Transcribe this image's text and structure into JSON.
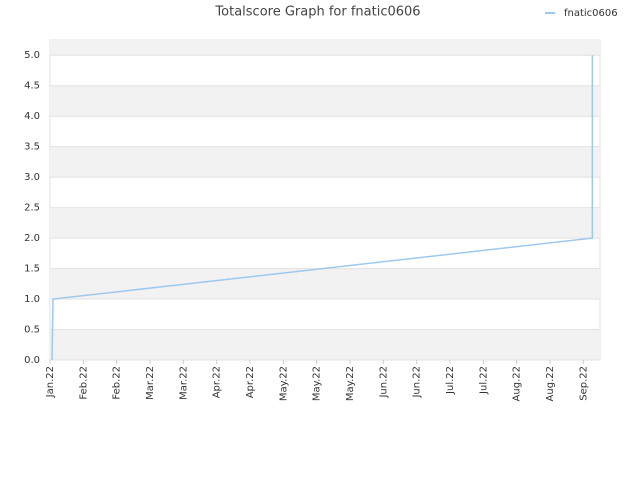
{
  "chart_data": {
    "type": "line",
    "title": "Totalscore Graph for fnatic0606",
    "x": [
      0.06,
      0.09,
      16.27,
      16.27
    ],
    "series": [
      {
        "name": "fnatic0606",
        "color": "#9ec9ef",
        "values": [
          0,
          1,
          2,
          5
        ]
      }
    ],
    "xlim": [
      0,
      16.5
    ],
    "xticks": [
      {
        "value": 0,
        "label": "Jan.22"
      },
      {
        "value": 1,
        "label": "Feb.22"
      },
      {
        "value": 2,
        "label": "Feb.22"
      },
      {
        "value": 3,
        "label": "Mar.22"
      },
      {
        "value": 4,
        "label": "Mar.22"
      },
      {
        "value": 5,
        "label": "Apr.22"
      },
      {
        "value": 6,
        "label": "Apr.22"
      },
      {
        "value": 7,
        "label": "May.22"
      },
      {
        "value": 8,
        "label": "May.22"
      },
      {
        "value": 9,
        "label": "May.22"
      },
      {
        "value": 10,
        "label": "Jun.22"
      },
      {
        "value": 11,
        "label": "Jun.22"
      },
      {
        "value": 12,
        "label": "Jul.22"
      },
      {
        "value": 13,
        "label": "Jul.22"
      },
      {
        "value": 14,
        "label": "Aug.22"
      },
      {
        "value": 15,
        "label": "Aug.22"
      },
      {
        "value": 16,
        "label": "Sep.22"
      }
    ],
    "ylim": [
      0,
      5.25
    ],
    "yticks": [
      {
        "value": 0,
        "label": "0.0"
      },
      {
        "value": 0.5,
        "label": "0.5"
      },
      {
        "value": 1,
        "label": "1.0"
      },
      {
        "value": 1.5,
        "label": "1.5"
      },
      {
        "value": 2,
        "label": "2.0"
      },
      {
        "value": 2.5,
        "label": "2.5"
      },
      {
        "value": 3,
        "label": "3.0"
      },
      {
        "value": 3.5,
        "label": "3.5"
      },
      {
        "value": 4,
        "label": "4.0"
      },
      {
        "value": 4.5,
        "label": "4.5"
      },
      {
        "value": 5,
        "label": "5.0"
      }
    ],
    "grid": true,
    "legend": "top-right"
  }
}
